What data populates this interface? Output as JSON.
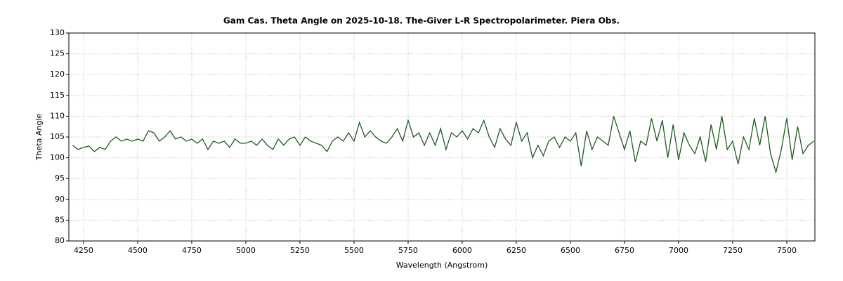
{
  "chart_data": {
    "type": "line",
    "title": "Gam Cas. Theta Angle on 2025-10-18. The-Giver L-R Spectropolarimeter. Piera Obs.",
    "x_label": "Wavelength (Angstrom)",
    "y_label": "Theta Angle",
    "xlim": [
      4182,
      7630
    ],
    "ylim": [
      80,
      130
    ],
    "xticks": [
      4250,
      4500,
      4750,
      5000,
      5250,
      5500,
      5750,
      6000,
      6250,
      6500,
      6750,
      7000,
      7250,
      7500
    ],
    "yticks": [
      80,
      85,
      90,
      95,
      100,
      105,
      110,
      115,
      120,
      125,
      130
    ],
    "grid": true,
    "x": [
      4200,
      4225,
      4250,
      4275,
      4300,
      4325,
      4350,
      4375,
      4400,
      4425,
      4450,
      4475,
      4500,
      4525,
      4550,
      4575,
      4600,
      4625,
      4650,
      4675,
      4700,
      4725,
      4750,
      4775,
      4800,
      4825,
      4850,
      4875,
      4900,
      4925,
      4950,
      4975,
      5000,
      5025,
      5050,
      5075,
      5100,
      5125,
      5150,
      5175,
      5200,
      5225,
      5250,
      5275,
      5300,
      5325,
      5350,
      5375,
      5400,
      5425,
      5450,
      5475,
      5500,
      5525,
      5550,
      5575,
      5600,
      5625,
      5650,
      5675,
      5700,
      5725,
      5750,
      5775,
      5800,
      5825,
      5850,
      5875,
      5900,
      5925,
      5950,
      5975,
      6000,
      6025,
      6050,
      6075,
      6100,
      6125,
      6150,
      6175,
      6200,
      6225,
      6250,
      6275,
      6300,
      6325,
      6350,
      6375,
      6400,
      6425,
      6450,
      6475,
      6500,
      6525,
      6550,
      6575,
      6600,
      6625,
      6650,
      6675,
      6700,
      6725,
      6750,
      6775,
      6800,
      6825,
      6850,
      6875,
      6900,
      6925,
      6950,
      6975,
      7000,
      7025,
      7050,
      7075,
      7100,
      7125,
      7150,
      7175,
      7200,
      7225,
      7250,
      7275,
      7300,
      7325,
      7350,
      7375,
      7400,
      7425,
      7450,
      7475,
      7500,
      7525,
      7550,
      7575,
      7600,
      7625
    ],
    "series": [
      {
        "color": "#1f5a1f",
        "values": [
          103,
          102,
          102.5,
          102.8,
          101.5,
          102.5,
          102,
          104,
          105,
          104,
          104.5,
          104,
          104.5,
          104,
          106.5,
          106,
          104,
          105,
          106.5,
          104.5,
          105,
          104,
          104.5,
          103.5,
          104.5,
          102,
          104,
          103.5,
          104,
          102.5,
          104.5,
          103.5,
          103.5,
          104,
          103,
          104.5,
          103,
          102,
          104.5,
          103,
          104.5,
          105,
          103,
          105,
          104,
          103.5,
          103,
          101.5,
          104,
          105,
          104,
          106,
          104,
          108.5,
          105,
          106.5,
          105,
          104,
          103.5,
          105,
          107,
          104,
          109,
          105,
          106,
          103,
          106,
          103,
          107,
          102,
          106,
          105,
          106.5,
          104.5,
          107,
          106,
          109,
          105,
          102.5,
          107,
          104.5,
          103,
          108.5,
          104,
          106,
          100,
          103,
          100.5,
          104,
          105,
          102.5,
          105,
          104,
          106,
          98,
          106.5,
          102,
          105,
          104,
          103,
          110,
          106,
          102,
          106.5,
          99,
          104,
          103,
          109.5,
          104,
          109,
          100,
          108,
          99.5,
          106,
          103,
          101,
          105,
          99,
          108,
          102,
          110,
          102,
          104,
          98.5,
          105,
          102,
          109.5,
          103,
          110,
          101,
          96.5,
          102,
          109.5,
          99.5,
          107.5,
          101,
          103,
          104
        ]
      }
    ]
  }
}
